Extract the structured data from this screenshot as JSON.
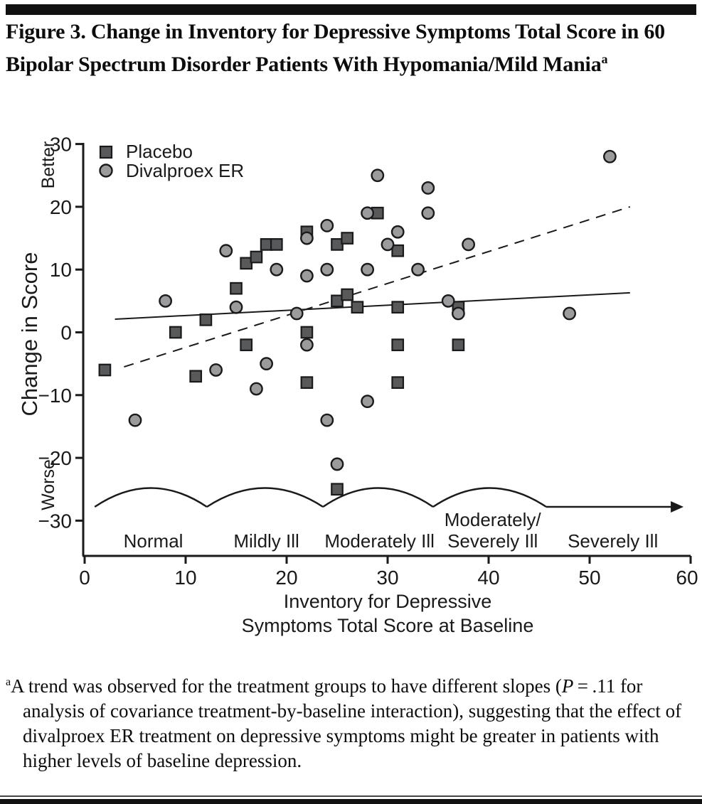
{
  "page": {
    "title_main": "Figure 3. Change in Inventory for Depressive Symptoms Total Score in 60 Bipolar Spectrum Disorder Patients With Hypomania/Mild Mania",
    "title_sup": "a"
  },
  "legend": {
    "placebo_label": "Placebo",
    "divalproex_label": "Divalproex ER"
  },
  "chart_data": {
    "type": "scatter",
    "xlabel_line1": "Inventory for Depressive",
    "xlabel_line2": "Symptoms Total Score at Baseline",
    "ylabel": "Change in Score",
    "y_top_annotation": "Better",
    "y_bottom_annotation": "Worse",
    "xlim": [
      0,
      60
    ],
    "ylim": [
      -35,
      30
    ],
    "x_ticks": [
      0,
      10,
      20,
      30,
      40,
      50,
      60
    ],
    "y_ticks": [
      30,
      20,
      10,
      0,
      -10,
      -20,
      -30
    ],
    "grid": false,
    "legend_position": "top-left-inside",
    "series": [
      {
        "name": "Placebo",
        "marker": "square",
        "fill": "#58595b",
        "stroke": "#1a1a1a",
        "points": [
          [
            2,
            -6
          ],
          [
            9,
            0
          ],
          [
            11,
            -7
          ],
          [
            12,
            2
          ],
          [
            15,
            7
          ],
          [
            16,
            11
          ],
          [
            16,
            -2
          ],
          [
            17,
            12
          ],
          [
            18,
            14
          ],
          [
            19,
            14
          ],
          [
            22,
            16
          ],
          [
            22,
            0
          ],
          [
            22,
            -8
          ],
          [
            25,
            14
          ],
          [
            26,
            15
          ],
          [
            25,
            5
          ],
          [
            26,
            6
          ],
          [
            27,
            4
          ],
          [
            29,
            19
          ],
          [
            31,
            13
          ],
          [
            31,
            4
          ],
          [
            31,
            -2
          ],
          [
            31,
            -8
          ],
          [
            37,
            4
          ],
          [
            37,
            -2
          ],
          [
            25,
            -25
          ]
        ]
      },
      {
        "name": "Divalproex ER",
        "marker": "circle",
        "fill": "#9b9b9d",
        "stroke": "#1a1a1a",
        "points": [
          [
            5,
            -14
          ],
          [
            8,
            5
          ],
          [
            13,
            -6
          ],
          [
            14,
            13
          ],
          [
            15,
            4
          ],
          [
            17,
            -9
          ],
          [
            18,
            -5
          ],
          [
            19,
            10
          ],
          [
            21,
            3
          ],
          [
            22,
            9
          ],
          [
            22,
            -2
          ],
          [
            22,
            15
          ],
          [
            24,
            17
          ],
          [
            24,
            10
          ],
          [
            24,
            -14
          ],
          [
            25,
            -21
          ],
          [
            28,
            19
          ],
          [
            28,
            10
          ],
          [
            28,
            -11
          ],
          [
            29,
            25
          ],
          [
            30,
            14
          ],
          [
            31,
            16
          ],
          [
            33,
            10
          ],
          [
            34,
            23
          ],
          [
            34,
            19
          ],
          [
            36,
            5
          ],
          [
            37,
            3
          ],
          [
            38,
            14
          ],
          [
            48,
            3
          ],
          [
            52,
            28
          ]
        ]
      }
    ],
    "trend_lines": [
      {
        "series": "Placebo",
        "style": "solid",
        "from": [
          3,
          2.1
        ],
        "to": [
          54,
          6.3
        ]
      },
      {
        "series": "Divalproex ER",
        "style": "dashed",
        "from": [
          3.9,
          -5.5
        ],
        "to": [
          54,
          20
        ]
      }
    ],
    "severity_bands": {
      "arc_boundaries_x": [
        1,
        12.1,
        23.6,
        34.5,
        45.7
      ],
      "arrow_end_x": 59.3,
      "labels": [
        {
          "text": "Normal",
          "x": 6.8,
          "two_line": false
        },
        {
          "text": "Mildly Ill",
          "x": 18.0,
          "two_line": false
        },
        {
          "text": "Moderately Ill",
          "x": 29.2,
          "two_line": false
        },
        {
          "text": "Moderately/",
          "text2": "Severely Ill",
          "x": 40.4,
          "two_line": true
        },
        {
          "text": "Severely Ill",
          "x": 52.3,
          "two_line": false
        }
      ]
    }
  },
  "footnote": {
    "sup": "a",
    "lines": [
      "A trend was observed for the treatment groups to have different slopes",
      "(P = .11 for analysis of covariance treatment-by-baseline interaction),",
      "suggesting that the effect of divalproex ER treatment on depressive",
      "symptoms might be greater in patients with higher levels of baseline",
      "depression."
    ]
  }
}
